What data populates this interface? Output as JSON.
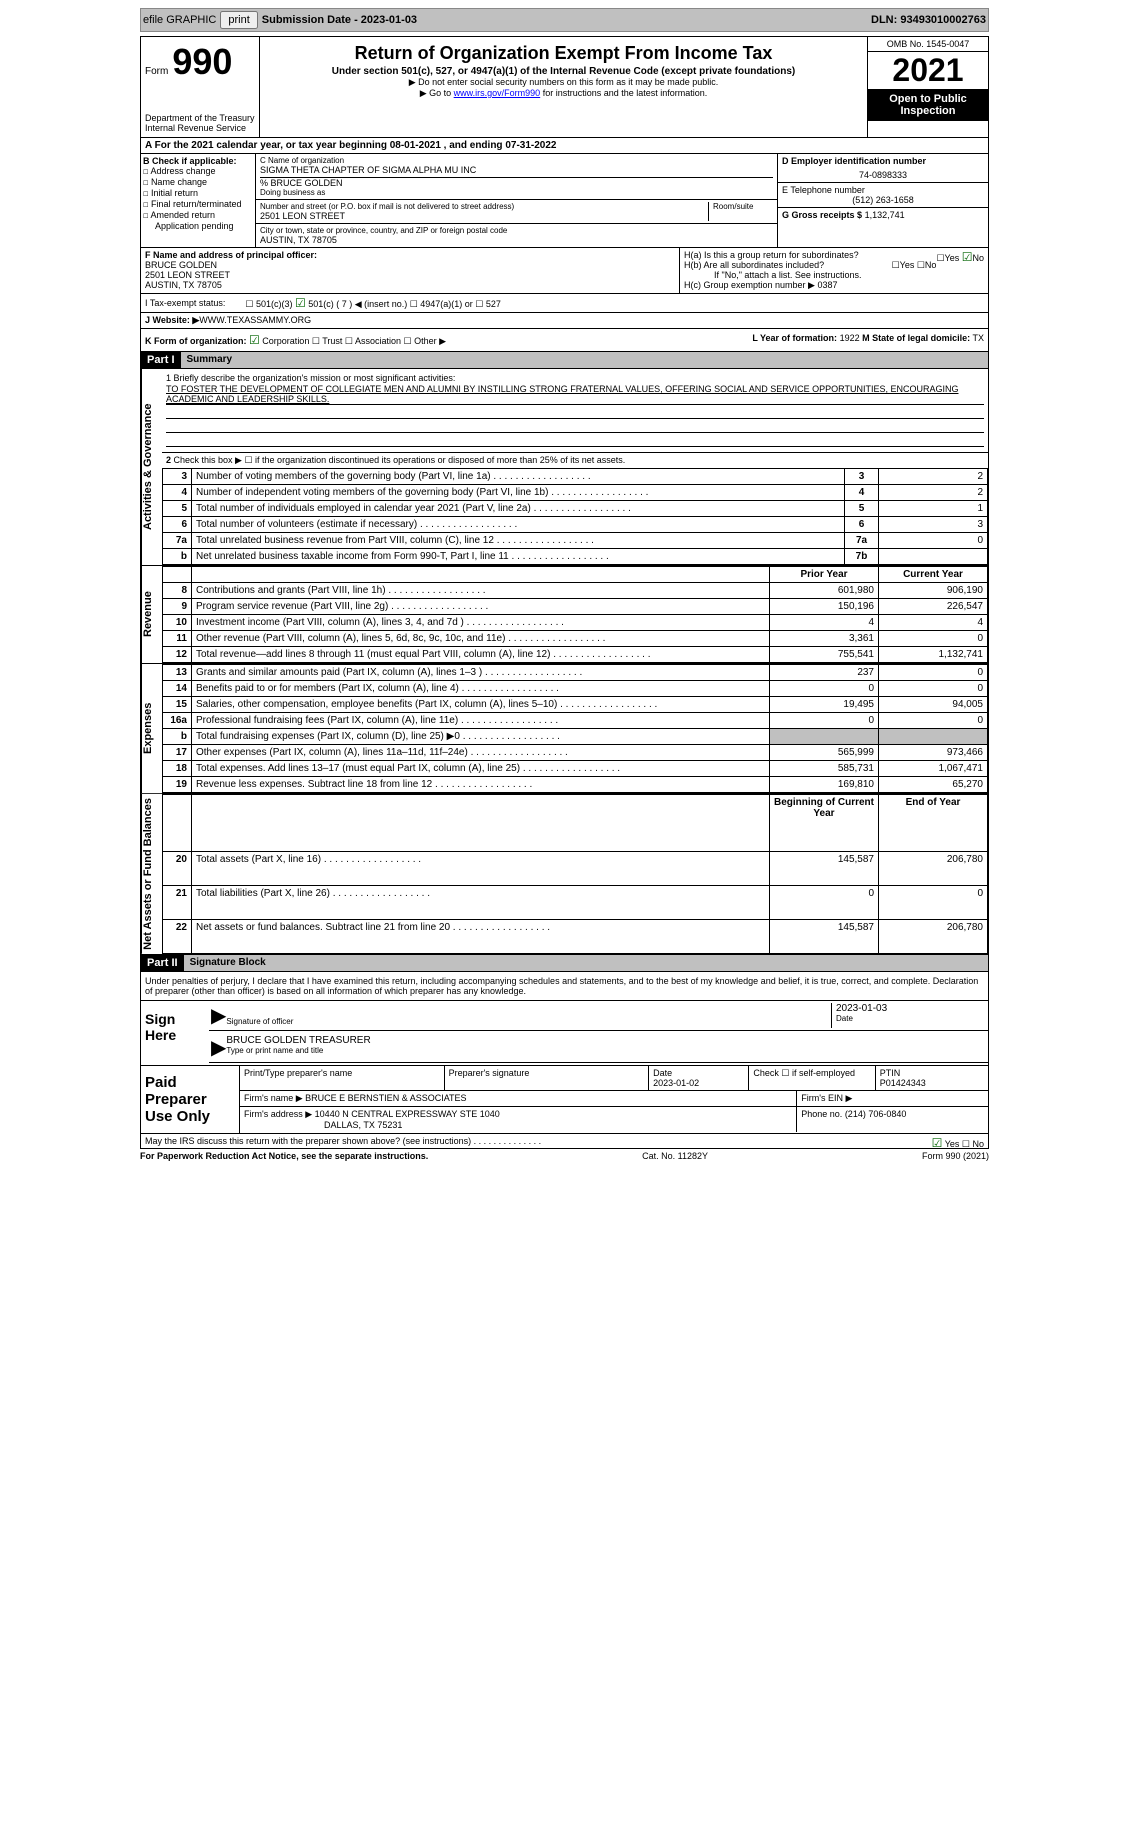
{
  "topbar": {
    "efile": "efile GRAPHIC",
    "print": "print",
    "subdate_label": "Submission Date - 2023-01-03",
    "dln_label": "DLN: 93493010002763"
  },
  "header": {
    "form": "Form",
    "formnum": "990",
    "dept": "Department of the Treasury",
    "irs": "Internal Revenue Service",
    "title": "Return of Organization Exempt From Income Tax",
    "sub": "Under section 501(c), 527, or 4947(a)(1) of the Internal Revenue Code (except private foundations)",
    "note1": "▶ Do not enter social security numbers on this form as it may be made public.",
    "note2_pre": "▶ Go to ",
    "note2_link": "www.irs.gov/Form990",
    "note2_post": " for instructions and the latest information.",
    "omb": "OMB No. 1545-0047",
    "year": "2021",
    "open": "Open to Public Inspection"
  },
  "cal": "A For the 2021 calendar year, or tax year beginning 08-01-2021   , and ending 07-31-2022",
  "b": {
    "label": "B Check if applicable:",
    "addr": "Address change",
    "name": "Name change",
    "init": "Initial return",
    "final": "Final return/terminated",
    "amend": "Amended return",
    "app": "Application pending"
  },
  "c": {
    "name_lbl": "C Name of organization",
    "name": "SIGMA THETA CHAPTER OF SIGMA ALPHA MU INC",
    "care": "% BRUCE GOLDEN",
    "dba_lbl": "Doing business as",
    "street_lbl": "Number and street (or P.O. box if mail is not delivered to street address)",
    "room_lbl": "Room/suite",
    "street": "2501 LEON STREET",
    "city_lbl": "City or town, state or province, country, and ZIP or foreign postal code",
    "city": "AUSTIN, TX  78705"
  },
  "d": {
    "lbl": "D Employer identification number",
    "val": "74-0898333"
  },
  "e": {
    "lbl": "E Telephone number",
    "val": "(512) 263-1658"
  },
  "g": {
    "lbl": "G Gross receipts $",
    "val": "1,132,741"
  },
  "f": {
    "lbl": "F  Name and address of principal officer:",
    "name": "BRUCE GOLDEN",
    "street": "2501 LEON STREET",
    "city": "AUSTIN, TX  78705"
  },
  "h": {
    "a": "H(a)  Is this a group return for subordinates?",
    "b": "H(b)  Are all subordinates included?",
    "bnote": "If \"No,\" attach a list. See instructions.",
    "c": "H(c)  Group exemption number ▶",
    "cval": "0387"
  },
  "i": {
    "lbl": "I   Tax-exempt status:",
    "c7": "501(c) ( 7 ) ◀ (insert no.)"
  },
  "j": {
    "lbl": "J   Website: ▶",
    "val": "WWW.TEXASSAMMY.ORG"
  },
  "k": {
    "lbl": "K Form of organization:",
    "corp": "Corporation",
    "trust": "Trust",
    "assoc": "Association",
    "other": "Other ▶"
  },
  "l": {
    "lbl": "L Year of formation:",
    "val": "1922"
  },
  "m": {
    "lbl": "M State of legal domicile:",
    "val": "TX"
  },
  "part1": {
    "hdr": "Part I",
    "title": "Summary",
    "mission_lbl": "1   Briefly describe the organization's mission or most significant activities:",
    "mission": "TO FOSTER THE DEVELOPMENT OF COLLEGIATE MEN AND ALUMNI BY INSTILLING STRONG FRATERNAL VALUES, OFFERING SOCIAL AND SERVICE OPPORTUNITIES, ENCOURAGING ACADEMIC AND LEADERSHIP SKILLS.",
    "line2": "Check this box ▶ ☐ if the organization discontinued its operations or disposed of more than 25% of its net assets.",
    "tabs": {
      "act": "Activities & Governance",
      "rev": "Revenue",
      "exp": "Expenses",
      "net": "Net Assets or Fund Balances"
    },
    "rows_a": [
      {
        "n": "3",
        "d": "Number of voting members of the governing body (Part VI, line 1a)",
        "b": "3",
        "v": "2"
      },
      {
        "n": "4",
        "d": "Number of independent voting members of the governing body (Part VI, line 1b)",
        "b": "4",
        "v": "2"
      },
      {
        "n": "5",
        "d": "Total number of individuals employed in calendar year 2021 (Part V, line 2a)",
        "b": "5",
        "v": "1"
      },
      {
        "n": "6",
        "d": "Total number of volunteers (estimate if necessary)",
        "b": "6",
        "v": "3"
      },
      {
        "n": "7a",
        "d": "Total unrelated business revenue from Part VIII, column (C), line 12",
        "b": "7a",
        "v": "0"
      },
      {
        "n": "b",
        "d": "Net unrelated business taxable income from Form 990-T, Part I, line 11",
        "b": "7b",
        "v": ""
      }
    ],
    "hdr_prior": "Prior Year",
    "hdr_curr": "Current Year",
    "rows_r": [
      {
        "n": "8",
        "d": "Contributions and grants (Part VIII, line 1h)",
        "p": "601,980",
        "c": "906,190"
      },
      {
        "n": "9",
        "d": "Program service revenue (Part VIII, line 2g)",
        "p": "150,196",
        "c": "226,547"
      },
      {
        "n": "10",
        "d": "Investment income (Part VIII, column (A), lines 3, 4, and 7d )",
        "p": "4",
        "c": "4"
      },
      {
        "n": "11",
        "d": "Other revenue (Part VIII, column (A), lines 5, 6d, 8c, 9c, 10c, and 11e)",
        "p": "3,361",
        "c": "0"
      },
      {
        "n": "12",
        "d": "Total revenue—add lines 8 through 11 (must equal Part VIII, column (A), line 12)",
        "p": "755,541",
        "c": "1,132,741"
      }
    ],
    "rows_e": [
      {
        "n": "13",
        "d": "Grants and similar amounts paid (Part IX, column (A), lines 1–3 )",
        "p": "237",
        "c": "0"
      },
      {
        "n": "14",
        "d": "Benefits paid to or for members (Part IX, column (A), line 4)",
        "p": "0",
        "c": "0"
      },
      {
        "n": "15",
        "d": "Salaries, other compensation, employee benefits (Part IX, column (A), lines 5–10)",
        "p": "19,495",
        "c": "94,005"
      },
      {
        "n": "16a",
        "d": "Professional fundraising fees (Part IX, column (A), line 11e)",
        "p": "0",
        "c": "0"
      },
      {
        "n": "b",
        "d": "Total fundraising expenses (Part IX, column (D), line 25) ▶0",
        "p": "",
        "c": "",
        "shaded": true
      },
      {
        "n": "17",
        "d": "Other expenses (Part IX, column (A), lines 11a–11d, 11f–24e)",
        "p": "565,999",
        "c": "973,466"
      },
      {
        "n": "18",
        "d": "Total expenses. Add lines 13–17 (must equal Part IX, column (A), line 25)",
        "p": "585,731",
        "c": "1,067,471"
      },
      {
        "n": "19",
        "d": "Revenue less expenses. Subtract line 18 from line 12",
        "p": "169,810",
        "c": "65,270"
      }
    ],
    "hdr_beg": "Beginning of Current Year",
    "hdr_end": "End of Year",
    "rows_n": [
      {
        "n": "20",
        "d": "Total assets (Part X, line 16)",
        "p": "145,587",
        "c": "206,780"
      },
      {
        "n": "21",
        "d": "Total liabilities (Part X, line 26)",
        "p": "0",
        "c": "0"
      },
      {
        "n": "22",
        "d": "Net assets or fund balances. Subtract line 21 from line 20",
        "p": "145,587",
        "c": "206,780"
      }
    ]
  },
  "part2": {
    "hdr": "Part II",
    "title": "Signature Block",
    "decl": "Under penalties of perjury, I declare that I have examined this return, including accompanying schedules and statements, and to the best of my knowledge and belief, it is true, correct, and complete. Declaration of preparer (other than officer) is based on all information of which preparer has any knowledge.",
    "sign": "Sign Here",
    "sig_lbl": "Signature of officer",
    "sig_date": "2023-01-03",
    "date_lbl": "Date",
    "name_lbl": "Type or print name and title",
    "name": "BRUCE GOLDEN  TREASURER",
    "paid": "Paid Preparer Use Only",
    "prep_name_lbl": "Print/Type preparer's name",
    "prep_sig_lbl": "Preparer's signature",
    "prep_date_lbl": "Date",
    "prep_date": "2023-01-02",
    "self_lbl": "Check ☐ if self-employed",
    "ptin_lbl": "PTIN",
    "ptin": "P01424343",
    "firm_lbl": "Firm's name    ▶",
    "firm": "BRUCE E BERNSTIEN & ASSOCIATES",
    "ein_lbl": "Firm's EIN ▶",
    "addr_lbl": "Firm's address ▶",
    "addr1": "10440 N CENTRAL EXPRESSWAY STE 1040",
    "addr2": "DALLAS, TX  75231",
    "phone_lbl": "Phone no.",
    "phone": "(214) 706-0840",
    "may": "May the IRS discuss this return with the preparer shown above? (see instructions)"
  },
  "foot": {
    "pra": "For Paperwork Reduction Act Notice, see the separate instructions.",
    "cat": "Cat. No. 11282Y",
    "form": "Form 990 (2021)"
  },
  "yn": {
    "yes": "Yes",
    "no": "No"
  }
}
